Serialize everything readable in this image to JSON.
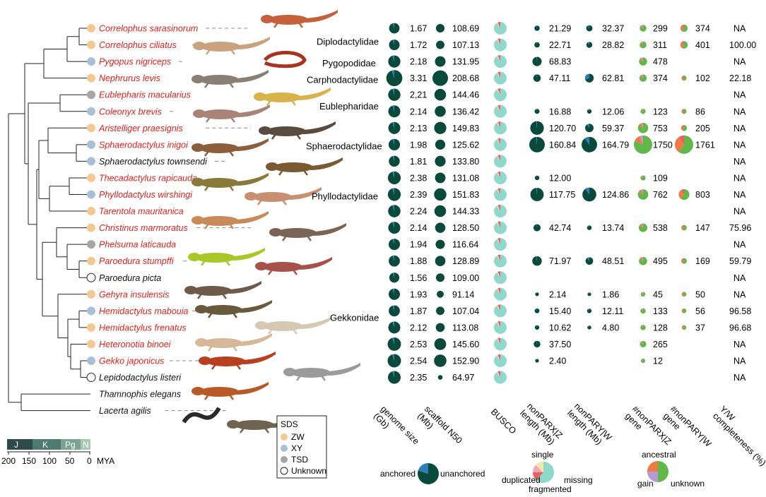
{
  "colors": {
    "dark": "#0a4a3c",
    "unanchored": "#2a7fb8",
    "busco_single": "#8fd8cc",
    "busco_duplicated": "#f2ea9e",
    "busco_fragmented": "#f4a7b9",
    "busco_missing": "#e86060",
    "gene_ancestral": "#5fb848",
    "gene_gain": "#ef7a45",
    "gene_unknown": "#b79ad6",
    "sds_zw": "#f5c892",
    "sds_xy": "#a9bfd8",
    "sds_tsd": "#a6a6a6",
    "sds_unknown": "#ffffff",
    "red_species": "#e4201c",
    "timescale": [
      "#2e4a4a",
      "#4e7a72",
      "#7aa392",
      "#a9c9b4"
    ]
  },
  "species": [
    {
      "name": "Correlophus sarasinorum",
      "red": true,
      "sds": "ZW",
      "g": "1.67",
      "n50": "108.69",
      "z": "21.29",
      "w": "32.37",
      "zg": "299",
      "wg": "374",
      "yw": "NA"
    },
    {
      "name": "Correlophus ciliatus",
      "red": true,
      "sds": "ZW",
      "g": "1.72",
      "n50": "107.13",
      "z": "22.71",
      "w": "28.82",
      "zg": "311",
      "wg": "401",
      "yw": "100.00"
    },
    {
      "name": "Pygopus nigriceps",
      "red": true,
      "sds": "XY",
      "g": "2.18",
      "n50": "131.95",
      "z": "68.83",
      "w": "",
      "zg": "478",
      "wg": "",
      "yw": "NA"
    },
    {
      "name": "Nephrurus levis",
      "red": true,
      "sds": "ZW",
      "g": "3.31",
      "n50": "208.68",
      "z": "47.11",
      "w": "62.81",
      "zg": "374",
      "wg": "102",
      "yw": "22.18"
    },
    {
      "name": "Eublepharis macularius",
      "red": true,
      "sds": "TSD",
      "g": "2,21",
      "n50": "144.46",
      "z": "",
      "w": "",
      "zg": "",
      "wg": "",
      "yw": "NA"
    },
    {
      "name": "Coleonyx brevis",
      "red": true,
      "sds": "XY",
      "g": "2.14",
      "n50": "136.42",
      "z": "16.88",
      "w": "12.06",
      "zg": "123",
      "wg": "86",
      "yw": "NA"
    },
    {
      "name": "Aristelliger praesignis",
      "red": true,
      "sds": "ZW",
      "g": "2.13",
      "n50": "149.83",
      "z": "120.70",
      "w": "59.37",
      "zg": "753",
      "wg": "205",
      "yw": "NA"
    },
    {
      "name": "Sphaerodactylus inigoi",
      "red": true,
      "sds": "XY",
      "g": "1.98",
      "n50": "125.62",
      "z": "160.84",
      "w": "164.79",
      "zg": "1750",
      "wg": "1761",
      "yw": "NA"
    },
    {
      "name": "Sphaerodactylus townsendi",
      "red": false,
      "sds": "XY",
      "g": "1.81",
      "n50": "133.80",
      "z": "",
      "w": "",
      "zg": "",
      "wg": "",
      "yw": "NA"
    },
    {
      "name": "Thecadactylus rapicauda",
      "red": true,
      "sds": "ZW",
      "g": "2.38",
      "n50": "131.08",
      "z": "12.00",
      "w": "",
      "zg": "109",
      "wg": "",
      "yw": "NA"
    },
    {
      "name": "Phyllodactylus wirshingi",
      "red": true,
      "sds": "XY",
      "g": "2.39",
      "n50": "151.83",
      "z": "117.75",
      "w": "124.86",
      "zg": "762",
      "wg": "803",
      "yw": "NA"
    },
    {
      "name": "Tarentola mauritanica",
      "red": true,
      "sds": "ZW",
      "g": "2.24",
      "n50": "144.33",
      "z": "",
      "w": "",
      "zg": "",
      "wg": "",
      "yw": "NA"
    },
    {
      "name": "Christinus marmoratus",
      "red": true,
      "sds": "ZW",
      "g": "2.14",
      "n50": "128.50",
      "z": "42.74",
      "w": "13.74",
      "zg": "538",
      "wg": "147",
      "yw": "75.96"
    },
    {
      "name": "Phelsuma laticauda",
      "red": true,
      "sds": "TSD",
      "g": "1.94",
      "n50": "116.64",
      "z": "",
      "w": "",
      "zg": "",
      "wg": "",
      "yw": "NA"
    },
    {
      "name": "Paroedura stumpffi",
      "red": true,
      "sds": "ZW",
      "g": "1.88",
      "n50": "128.89",
      "z": "71.97",
      "w": "48.51",
      "zg": "495",
      "wg": "169",
      "yw": "59.79"
    },
    {
      "name": "Paroedura picta",
      "red": false,
      "sds": "Unknown",
      "g": "1.56",
      "n50": "109.00",
      "z": "",
      "w": "",
      "zg": "",
      "wg": "",
      "yw": "NA"
    },
    {
      "name": "Gehyra insulensis",
      "red": true,
      "sds": "ZW",
      "g": "1.93",
      "n50": "91.14",
      "z": "2.14",
      "w": "1.86",
      "zg": "45",
      "wg": "50",
      "yw": "NA"
    },
    {
      "name": "Hemidactylus mabouia",
      "red": true,
      "sds": "XY",
      "g": "1.87",
      "n50": "107.04",
      "z": "15.40",
      "w": "12.11",
      "zg": "133",
      "wg": "56",
      "yw": "96.58"
    },
    {
      "name": "Hemidactylus frenatus",
      "red": true,
      "sds": "ZW",
      "g": "2.12",
      "n50": "113.08",
      "z": "10.62",
      "w": "4.80",
      "zg": "128",
      "wg": "37",
      "yw": "96.68"
    },
    {
      "name": "Heteronotia binoei",
      "red": true,
      "sds": "ZW",
      "g": "2.53",
      "n50": "145.60",
      "z": "37.50",
      "w": "",
      "zg": "265",
      "wg": "",
      "yw": "NA"
    },
    {
      "name": "Gekko japonicus",
      "red": true,
      "sds": "XY",
      "g": "2.54",
      "n50": "152.90",
      "z": "2.40",
      "w": "",
      "zg": "12",
      "wg": "",
      "yw": "NA"
    },
    {
      "name": "Lepidodactylus listeri",
      "red": false,
      "sds": "Unknown",
      "g": "2.35",
      "n50": "64.97",
      "z": "",
      "w": "",
      "zg": "",
      "wg": "",
      "yw": "NA"
    },
    {
      "name": "Thamnophis elegans",
      "red": false,
      "sds": "",
      "g": "",
      "n50": "",
      "z": "",
      "w": "",
      "zg": "",
      "wg": "",
      "yw": ""
    },
    {
      "name": "Lacerta agilis",
      "red": false,
      "sds": "",
      "g": "",
      "n50": "",
      "z": "",
      "w": "",
      "zg": "",
      "wg": "",
      "yw": ""
    }
  ],
  "families": [
    "Diplodactylidae",
    "Pygopodidae",
    "Carphodactylidae",
    "Eublepharidae",
    "Sphaerodactylidae",
    "Phyllodactylidae",
    "Gekkonidae"
  ],
  "column_headers": [
    "genome size (Gb)",
    "scaffold N50 (Mb)",
    "BUSCO",
    "nonPARX|Z length (Mb)",
    "nonPARY|W length (Mb)",
    "#nonPARX|Z gene",
    "#nonPARY|W gene",
    "Y/W completeness (%)"
  ],
  "sds_legend": {
    "title": "SDS",
    "items": [
      "ZW",
      "XY",
      "TSD",
      "Unknown"
    ]
  },
  "timescale": {
    "periods": [
      "J",
      "K",
      "Pg",
      "N"
    ],
    "ticks": [
      "200",
      "150",
      "100",
      "50",
      "0"
    ],
    "unit": "MYA"
  },
  "pie_legends": {
    "anchoring": {
      "left": "anchored",
      "right": "unanchored"
    },
    "busco": {
      "top": "single",
      "left": "duplicated",
      "right": "missing",
      "bottom": "fragmented"
    },
    "genes": {
      "top": "ancestral",
      "left": "gain",
      "right": "unknown"
    }
  }
}
